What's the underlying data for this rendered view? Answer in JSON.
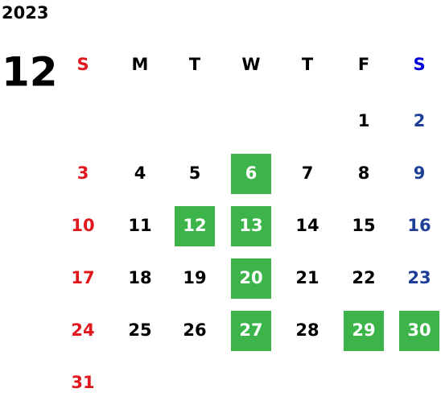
{
  "year": "2023",
  "month": "12",
  "weekdays": [
    "S",
    "M",
    "T",
    "W",
    "T",
    "F",
    "S"
  ],
  "weeks": [
    [
      {
        "label": "1"
      },
      {
        "label": "2"
      }
    ],
    [
      {
        "label": "3"
      },
      {
        "label": "4"
      },
      {
        "label": "5"
      },
      {
        "label": "6",
        "highlighted": true
      },
      {
        "label": "7"
      },
      {
        "label": "8"
      },
      {
        "label": "9"
      }
    ],
    [
      {
        "label": "10"
      },
      {
        "label": "11"
      },
      {
        "label": "12",
        "highlighted": true
      },
      {
        "label": "13",
        "highlighted": true
      },
      {
        "label": "14"
      },
      {
        "label": "15"
      },
      {
        "label": "16"
      }
    ],
    [
      {
        "label": "17"
      },
      {
        "label": "18"
      },
      {
        "label": "19"
      },
      {
        "label": "20",
        "highlighted": true
      },
      {
        "label": "21"
      },
      {
        "label": "22"
      },
      {
        "label": "23"
      }
    ],
    [
      {
        "label": "24"
      },
      {
        "label": "25"
      },
      {
        "label": "26"
      },
      {
        "label": "27",
        "highlighted": true
      },
      {
        "label": "28"
      },
      {
        "label": "29",
        "highlighted": true
      },
      {
        "label": "30",
        "highlighted": true
      }
    ],
    [
      {
        "label": "31"
      }
    ]
  ]
}
